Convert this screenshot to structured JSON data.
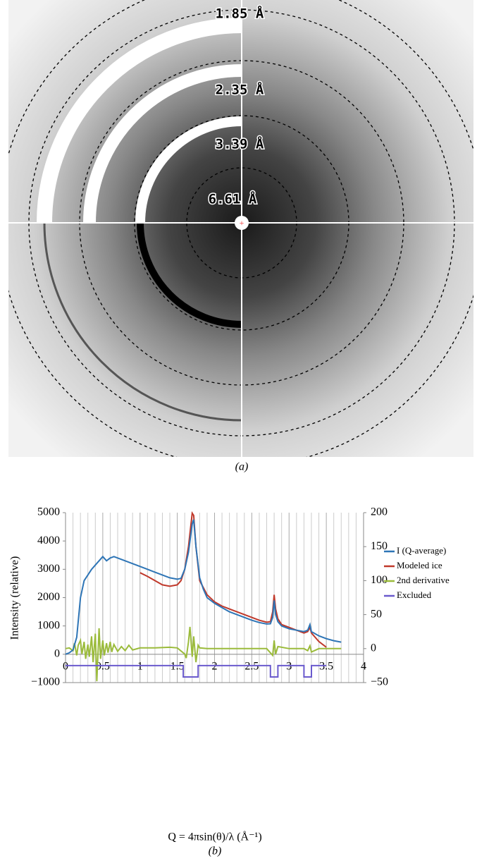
{
  "panel_a": {
    "ring_labels": [
      "1.85 Å",
      "2.35 Å",
      "3.39 Å",
      "6.61 Å"
    ],
    "caption": "(a)"
  },
  "chart_data": {
    "type": "line",
    "caption": "(b)",
    "xlabel": "Q = 4πsin(θ)/λ (Å⁻¹)",
    "ylabel": "Intensity (relative)",
    "xlim": [
      0,
      4
    ],
    "xticks": [
      0,
      0.5,
      1,
      1.5,
      2,
      2.5,
      3,
      3.5,
      4
    ],
    "xminorticks": [
      0.1,
      0.2,
      0.3,
      0.4,
      0.6,
      0.7,
      0.8,
      0.9,
      1.1,
      1.2,
      1.3,
      1.4,
      1.6,
      1.7,
      1.8,
      1.9,
      2.1,
      2.2,
      2.3,
      2.4,
      2.6,
      2.7,
      2.8,
      2.9,
      3.1,
      3.2,
      3.3,
      3.4,
      3.6,
      3.7,
      3.8,
      3.9
    ],
    "ylim": [
      -1000,
      5000
    ],
    "yticks": [
      {
        "value": -1000,
        "label": "−1000"
      },
      0,
      1000,
      2000,
      3000,
      4000,
      5000
    ],
    "y2lim": [
      -50,
      200
    ],
    "y2ticks": [
      {
        "value": -50,
        "label": "−50"
      },
      0,
      50,
      100,
      150,
      200
    ],
    "grid": true,
    "legend": "right",
    "series": [
      {
        "name": "I (Q-average)",
        "color": "#2e75b6",
        "x": [
          0,
          0.05,
          0.1,
          0.15,
          0.2,
          0.25,
          0.3,
          0.35,
          0.4,
          0.45,
          0.5,
          0.55,
          0.6,
          0.65,
          0.7,
          0.8,
          0.9,
          1.0,
          1.1,
          1.2,
          1.3,
          1.4,
          1.5,
          1.55,
          1.6,
          1.65,
          1.7,
          1.72,
          1.75,
          1.8,
          1.85,
          1.9,
          2.0,
          2.1,
          2.2,
          2.3,
          2.4,
          2.5,
          2.6,
          2.7,
          2.75,
          2.78,
          2.8,
          2.82,
          2.85,
          2.9,
          3.0,
          3.1,
          3.2,
          3.25,
          3.28,
          3.3,
          3.4,
          3.5,
          3.6,
          3.7
        ],
        "values": [
          0,
          50,
          150,
          600,
          2000,
          2600,
          2800,
          3000,
          3150,
          3300,
          3450,
          3300,
          3400,
          3450,
          3400,
          3300,
          3200,
          3100,
          3000,
          2900,
          2800,
          2700,
          2650,
          2680,
          3000,
          3600,
          4600,
          4750,
          3800,
          2700,
          2300,
          2000,
          1800,
          1650,
          1500,
          1400,
          1300,
          1200,
          1120,
          1070,
          1080,
          1300,
          1900,
          1400,
          1150,
          1000,
          900,
          850,
          800,
          850,
          1050,
          800,
          650,
          550,
          480,
          430
        ]
      },
      {
        "name": "Modeled ice",
        "color": "#c0392b",
        "x": [
          1.0,
          1.1,
          1.2,
          1.3,
          1.4,
          1.5,
          1.55,
          1.6,
          1.65,
          1.7,
          1.72,
          1.75,
          1.8,
          1.9,
          2.0,
          2.1,
          2.2,
          2.3,
          2.35,
          2.4,
          2.5,
          2.6,
          2.7,
          2.75,
          2.78,
          2.8,
          2.82,
          2.85,
          2.9,
          3.0,
          3.1,
          3.2,
          3.25,
          3.28,
          3.3,
          3.4,
          3.5
        ],
        "values": [
          2880,
          2750,
          2600,
          2450,
          2400,
          2450,
          2600,
          3000,
          3800,
          4980,
          4900,
          3800,
          2600,
          2100,
          1850,
          1700,
          1600,
          1500,
          1450,
          1400,
          1300,
          1200,
          1130,
          1150,
          1500,
          2100,
          1600,
          1250,
          1050,
          950,
          850,
          750,
          800,
          950,
          750,
          450,
          250
        ]
      },
      {
        "name": "2nd derivative",
        "color": "#9bbb3b",
        "axis": "y2",
        "x": [
          0,
          0.05,
          0.1,
          0.12,
          0.15,
          0.17,
          0.2,
          0.22,
          0.25,
          0.27,
          0.3,
          0.32,
          0.35,
          0.37,
          0.4,
          0.42,
          0.45,
          0.47,
          0.5,
          0.52,
          0.55,
          0.57,
          0.6,
          0.62,
          0.65,
          0.7,
          0.75,
          0.8,
          0.85,
          0.9,
          1.0,
          1.2,
          1.4,
          1.5,
          1.6,
          1.62,
          1.65,
          1.67,
          1.7,
          1.72,
          1.75,
          1.78,
          1.8,
          1.9,
          2.2,
          2.5,
          2.7,
          2.78,
          2.8,
          2.82,
          2.85,
          3.0,
          3.2,
          3.25,
          3.28,
          3.3,
          3.4,
          3.7
        ],
        "values": [
          0,
          1,
          -3,
          8,
          -10,
          5,
          12,
          -8,
          10,
          -15,
          6,
          -12,
          18,
          -20,
          22,
          -48,
          30,
          -15,
          12,
          -10,
          8,
          -6,
          10,
          -5,
          6,
          -4,
          3,
          -3,
          5,
          -2,
          1,
          1,
          2,
          1,
          -8,
          -14,
          10,
          32,
          -12,
          18,
          -20,
          5,
          1,
          0,
          0,
          0,
          0,
          -10,
          12,
          -8,
          3,
          0,
          0,
          -3,
          4,
          -5,
          0,
          0
        ]
      },
      {
        "name": "Excluded",
        "color": "#6a5acd",
        "x": [
          0,
          1.58,
          1.58,
          1.78,
          1.78,
          2.75,
          2.75,
          2.85,
          2.85,
          3.2,
          3.2,
          3.3,
          3.3,
          3.5
        ],
        "values": [
          -400,
          -400,
          -800,
          -800,
          -400,
          -400,
          -800,
          -800,
          -400,
          -400,
          -800,
          -800,
          -400,
          -400
        ]
      }
    ]
  }
}
